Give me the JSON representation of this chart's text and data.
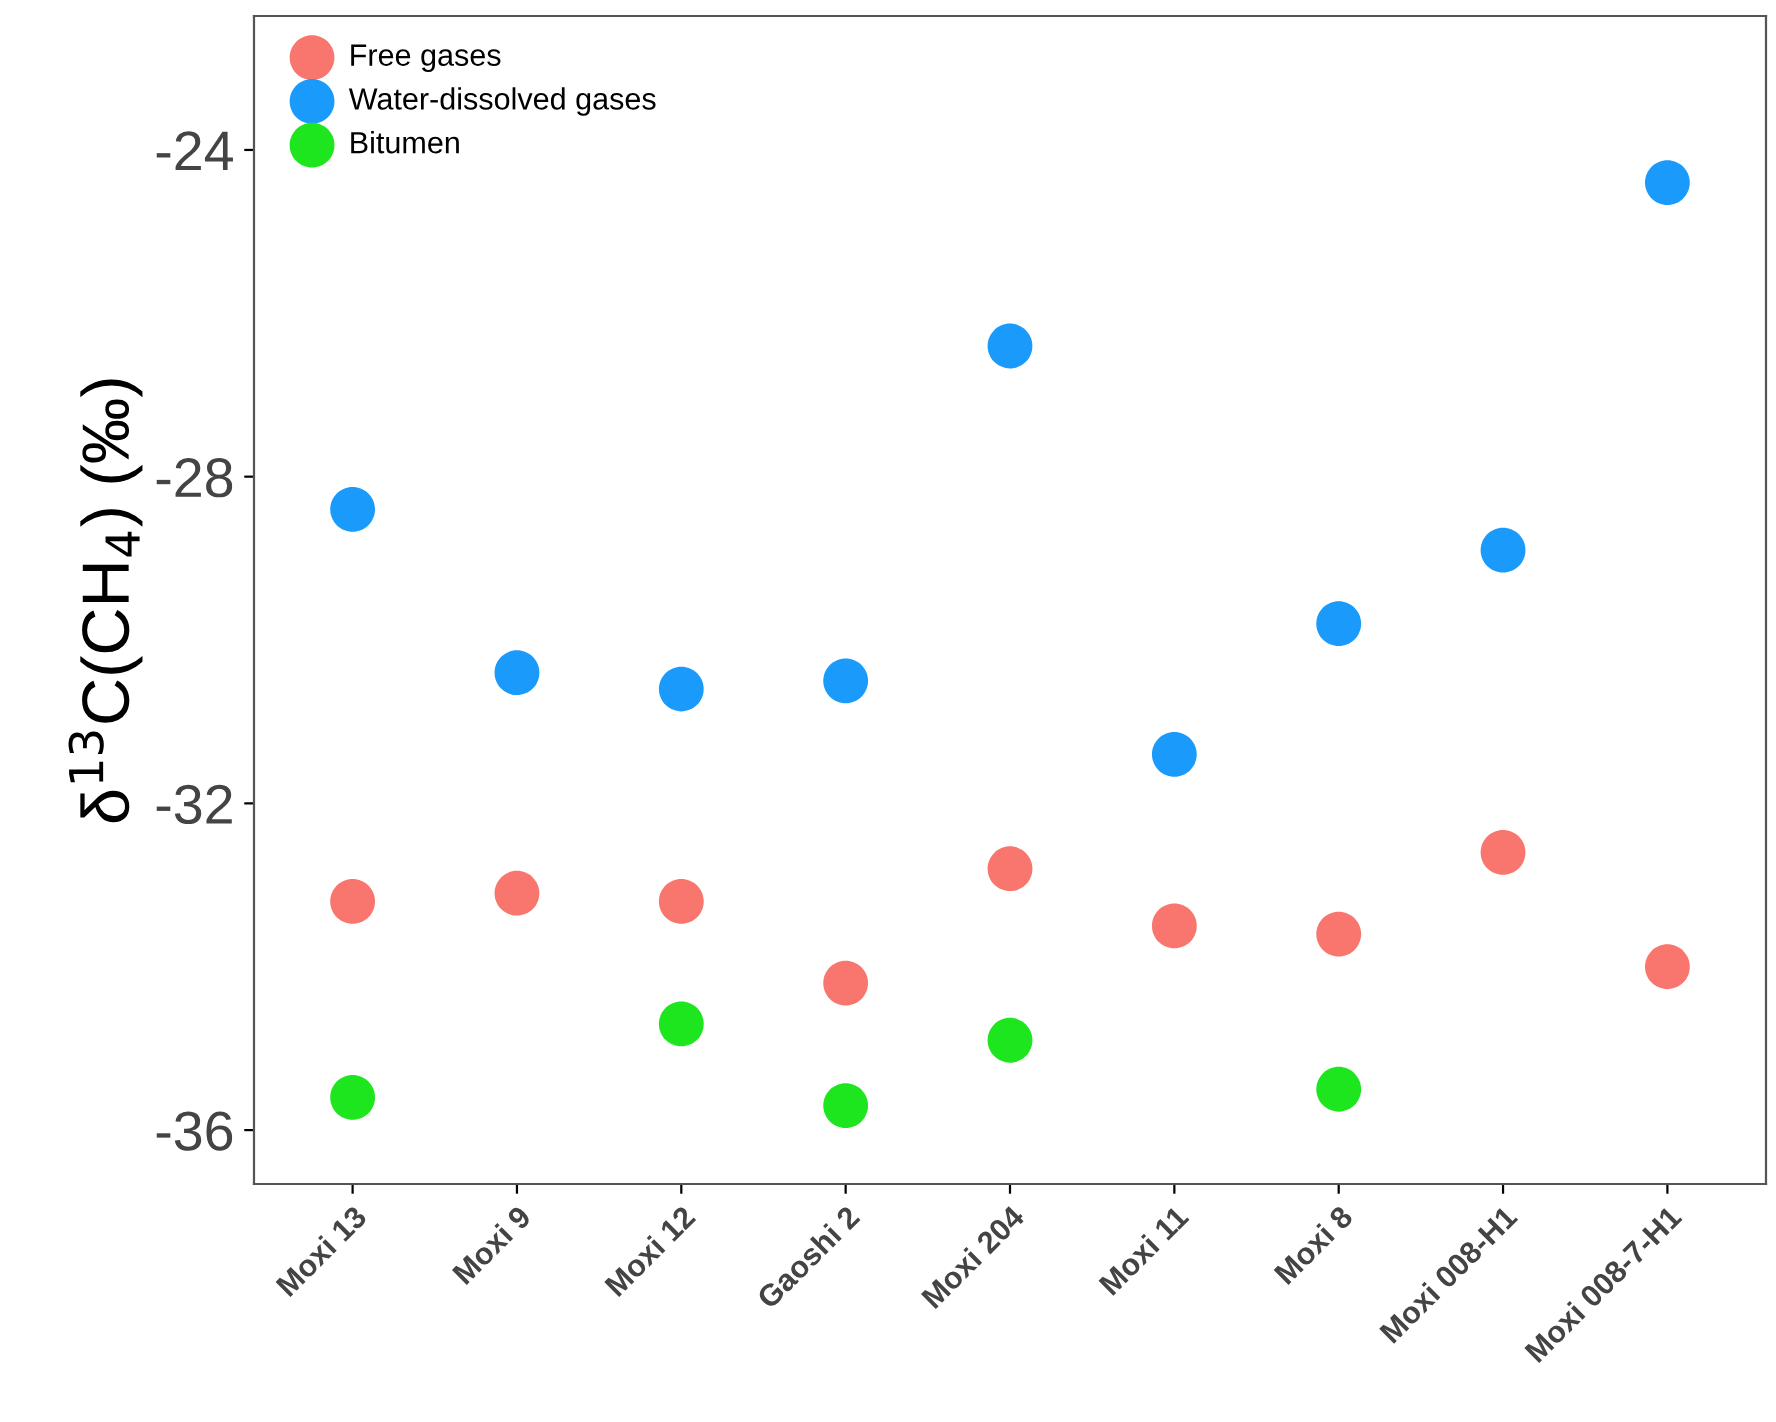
{
  "chart_data": {
    "type": "scatter",
    "ylabel": "δ$^{13}$C(CH$_{4}$) (‰)",
    "categories": [
      "Moxi 13",
      "Moxi 9",
      "Moxi 12",
      "Gaoshi 2",
      "Moxi 204",
      "Moxi 11",
      "Moxi 8",
      "Moxi 008-H1",
      "Moxi 008-7-H1"
    ],
    "series": [
      {
        "name": "Free gases",
        "color": "#f8766d",
        "values": [
          -33.2,
          -33.1,
          -33.2,
          -34.2,
          -32.8,
          -33.5,
          -33.6,
          -32.6,
          -34.0
        ]
      },
      {
        "name": "Water-dissolved gases",
        "color": "#1a9bfc",
        "values": [
          -28.4,
          -30.4,
          -30.6,
          -30.5,
          -26.4,
          -31.4,
          -29.8,
          -28.9,
          -24.4
        ]
      },
      {
        "name": "Bitumen",
        "color": "#1ee61e",
        "values": [
          -35.6,
          null,
          -34.7,
          -35.7,
          -34.9,
          null,
          -35.5,
          null,
          null
        ]
      }
    ],
    "ylim": [
      -36.66,
      -22.36
    ],
    "yticks": [
      -36,
      -32,
      -28,
      -24
    ],
    "legend": "top left",
    "marker": "circle",
    "grid": false
  }
}
